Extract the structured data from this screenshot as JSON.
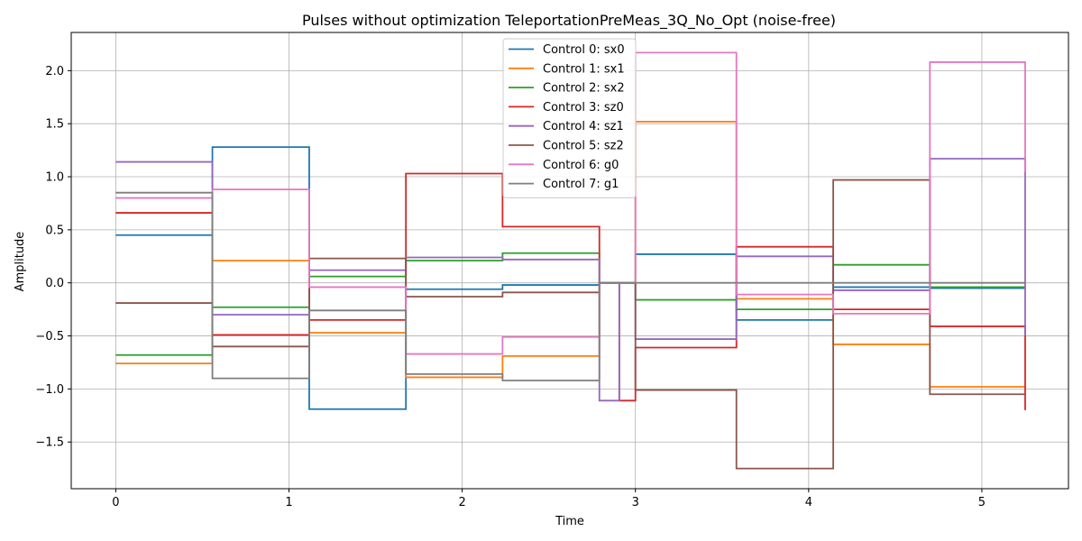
{
  "chart_data": {
    "type": "line",
    "step": "post",
    "title": "Pulses without optimization TeleportationPreMeas_3Q_No_Opt (noise-free)",
    "xlabel": "Time",
    "ylabel": "Amplitude",
    "xlim": [
      -0.257,
      5.5
    ],
    "ylim": [
      -1.94,
      2.36
    ],
    "xticks": [
      0,
      1,
      2,
      3,
      4,
      5
    ],
    "yticks": [
      -1.5,
      -1.0,
      -0.5,
      0.0,
      0.5,
      1.0,
      1.5,
      2.0
    ],
    "xtick_labels": [
      "0",
      "1",
      "2",
      "3",
      "4",
      "5"
    ],
    "ytick_labels": [
      "−1.5",
      "−1.0",
      "−0.5",
      "0.0",
      "0.5",
      "1.0",
      "1.5",
      "2.0"
    ],
    "grid": true,
    "legend_position": "top-center",
    "series": [
      {
        "name": "Control 0: sx0",
        "color": "#1f77b4",
        "x": [
          0,
          0.558,
          1.117,
          1.675,
          2.233,
          2.792,
          2.907,
          3.0,
          3.583,
          4.142,
          4.7,
          5.25
        ],
        "y": [
          0.45,
          1.28,
          -1.19,
          -0.06,
          -0.02,
          0.0,
          0.0,
          0.27,
          -0.35,
          -0.04,
          -0.05,
          -0.05
        ]
      },
      {
        "name": "Control 1: sx1",
        "color": "#ff7f0e",
        "x": [
          0,
          0.558,
          1.117,
          1.675,
          2.233,
          2.792,
          2.907,
          3.0,
          3.583,
          4.142,
          4.7,
          5.25
        ],
        "y": [
          -0.76,
          0.21,
          -0.47,
          -0.89,
          -0.69,
          0.0,
          0.0,
          1.52,
          -0.15,
          -0.58,
          -0.98,
          -0.98
        ]
      },
      {
        "name": "Control 2: sx2",
        "color": "#2ca02c",
        "x": [
          0,
          0.558,
          1.117,
          1.675,
          2.233,
          2.792,
          2.907,
          3.0,
          3.583,
          4.142,
          4.7,
          5.25
        ],
        "y": [
          -0.68,
          -0.23,
          0.06,
          0.21,
          0.28,
          0.0,
          0.0,
          -0.16,
          -0.25,
          0.17,
          -0.04,
          -0.04
        ]
      },
      {
        "name": "Control 3: sz0",
        "color": "#d62728",
        "x": [
          0,
          0.558,
          1.117,
          1.675,
          2.233,
          2.792,
          2.907,
          3.0,
          3.583,
          4.142,
          4.7,
          5.25
        ],
        "y": [
          0.66,
          -0.49,
          -0.35,
          1.03,
          0.53,
          0.0,
          -1.11,
          -0.61,
          0.34,
          -0.25,
          -0.41,
          -1.2
        ]
      },
      {
        "name": "Control 4: sz1",
        "color": "#9467bd",
        "x": [
          0,
          0.558,
          1.117,
          1.675,
          2.233,
          2.792,
          2.907,
          3.0,
          3.583,
          4.142,
          4.7,
          5.25
        ],
        "y": [
          1.14,
          -0.3,
          0.12,
          0.24,
          0.22,
          -1.11,
          0.0,
          -0.53,
          0.25,
          -0.07,
          1.17,
          -0.5
        ]
      },
      {
        "name": "Control 5: sz2",
        "color": "#8c564b",
        "x": [
          0,
          0.558,
          1.117,
          1.675,
          2.233,
          2.792,
          2.907,
          3.0,
          3.583,
          4.142,
          4.7,
          5.25
        ],
        "y": [
          -0.19,
          -0.6,
          0.23,
          -0.13,
          -0.09,
          0.0,
          0.0,
          -1.01,
          -1.75,
          0.97,
          -1.05,
          -1.05
        ]
      },
      {
        "name": "Control 6: g0",
        "color": "#e377c2",
        "x": [
          0,
          0.558,
          1.117,
          1.675,
          2.233,
          2.792,
          2.907,
          3.0,
          3.583,
          4.142,
          4.7,
          5.25
        ],
        "y": [
          0.8,
          0.88,
          -0.04,
          -0.67,
          -0.51,
          0.0,
          0.0,
          2.17,
          -0.11,
          -0.29,
          2.08,
          1.04
        ]
      },
      {
        "name": "Control 7: g1",
        "color": "#7f7f7f",
        "x": [
          0,
          0.558,
          1.117,
          1.675,
          2.233,
          2.792,
          2.907,
          3.0,
          3.583,
          4.142,
          4.7,
          5.25
        ],
        "y": [
          0.85,
          -0.9,
          -0.26,
          -0.86,
          -0.92,
          0.0,
          0.0,
          0.0,
          0.0,
          0.0,
          0.0,
          0.0
        ]
      }
    ]
  }
}
